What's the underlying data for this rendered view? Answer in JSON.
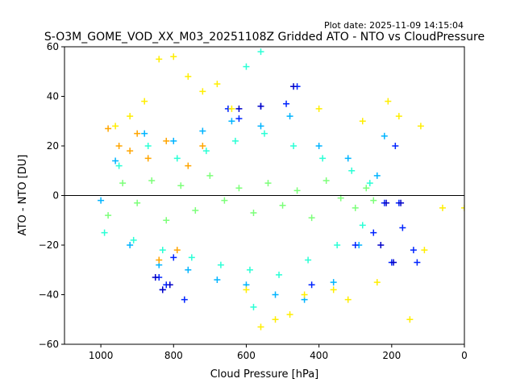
{
  "chart_data": {
    "type": "scatter",
    "title": "S-O3M_GOME_VOD_XX_M03_20251108Z Gridded ATO - NTO vs CloudPressure",
    "plot_date": "Plot date: 2025-11-09 14:15:04",
    "xlabel": "Cloud Pressure [hPa]",
    "ylabel": "ATO - NTO [DU]",
    "xlim": [
      1100,
      0
    ],
    "ylim": [
      -60,
      60
    ],
    "x_ticks": [
      1000,
      800,
      600,
      400,
      200,
      0
    ],
    "y_ticks": [
      -60,
      -40,
      -20,
      0,
      20,
      40,
      60
    ],
    "reference_line": {
      "y": 0,
      "color": "#000000"
    },
    "marker": "+",
    "series": [
      {
        "name": "cyan-green core",
        "color": "#7cff79",
        "x": [
          980,
          940,
          900,
          860,
          820,
          780,
          740,
          700,
          660,
          620,
          580,
          540,
          500,
          460,
          420,
          380,
          340,
          300,
          270,
          250
        ],
        "y": [
          -8,
          5,
          -3,
          6,
          -10,
          4,
          -6,
          8,
          -2,
          3,
          -7,
          5,
          -4,
          2,
          -9,
          6,
          -1,
          -5,
          3,
          -2
        ]
      },
      {
        "name": "turquoise",
        "color": "#2affd5",
        "x": [
          990,
          950,
          910,
          870,
          830,
          790,
          750,
          710,
          670,
          630,
          590,
          550,
          510,
          470,
          430,
          390,
          350,
          310,
          280,
          260,
          600,
          580,
          560
        ],
        "y": [
          -15,
          12,
          -18,
          20,
          -22,
          15,
          -25,
          18,
          -28,
          22,
          -30,
          25,
          -32,
          20,
          -26,
          15,
          -20,
          10,
          -12,
          5,
          52,
          -45,
          58
        ]
      },
      {
        "name": "light blue",
        "color": "#00b4ff",
        "x": [
          1000,
          960,
          920,
          880,
          840,
          800,
          760,
          720,
          680,
          640,
          600,
          560,
          520,
          480,
          440,
          400,
          360,
          320,
          290,
          240,
          220
        ],
        "y": [
          -2,
          14,
          -20,
          25,
          -28,
          22,
          -30,
          26,
          -34,
          30,
          -36,
          28,
          -40,
          32,
          -42,
          20,
          -35,
          15,
          -20,
          8,
          24
        ]
      },
      {
        "name": "blue",
        "color": "#0024ff",
        "x": [
          840,
          830,
          820,
          800,
          770,
          650,
          620,
          560,
          490,
          460,
          420,
          300,
          250,
          220,
          200,
          190,
          180,
          170,
          140,
          130
        ],
        "y": [
          -33,
          -38,
          -36,
          -25,
          -42,
          35,
          31,
          36,
          37,
          44,
          -36,
          -20,
          -15,
          -3,
          -27,
          20,
          -3,
          -13,
          -22,
          -27
        ]
      },
      {
        "name": "dark blue",
        "color": "#0000c8",
        "x": [
          850,
          830,
          810,
          620,
          560,
          470,
          230,
          215,
          195,
          175
        ],
        "y": [
          -33,
          -38,
          -36,
          35,
          36,
          44,
          -20,
          -3,
          -27,
          -3
        ]
      },
      {
        "name": "yellow",
        "color": "#ffee00",
        "x": [
          960,
          920,
          880,
          840,
          800,
          760,
          720,
          680,
          640,
          600,
          560,
          520,
          480,
          440,
          400,
          360,
          320,
          280,
          240,
          210,
          180,
          120,
          110,
          60,
          0,
          150
        ],
        "y": [
          28,
          32,
          38,
          55,
          56,
          48,
          42,
          45,
          35,
          -38,
          -53,
          -50,
          -48,
          -40,
          35,
          -38,
          -42,
          30,
          -35,
          38,
          32,
          28,
          -22,
          -5,
          -5,
          -50
        ]
      },
      {
        "name": "orange",
        "color": "#ffa500",
        "x": [
          980,
          950,
          920,
          900,
          870,
          840,
          820,
          790,
          760,
          720
        ],
        "y": [
          27,
          20,
          18,
          25,
          15,
          -26,
          22,
          -22,
          12,
          20
        ]
      }
    ]
  }
}
